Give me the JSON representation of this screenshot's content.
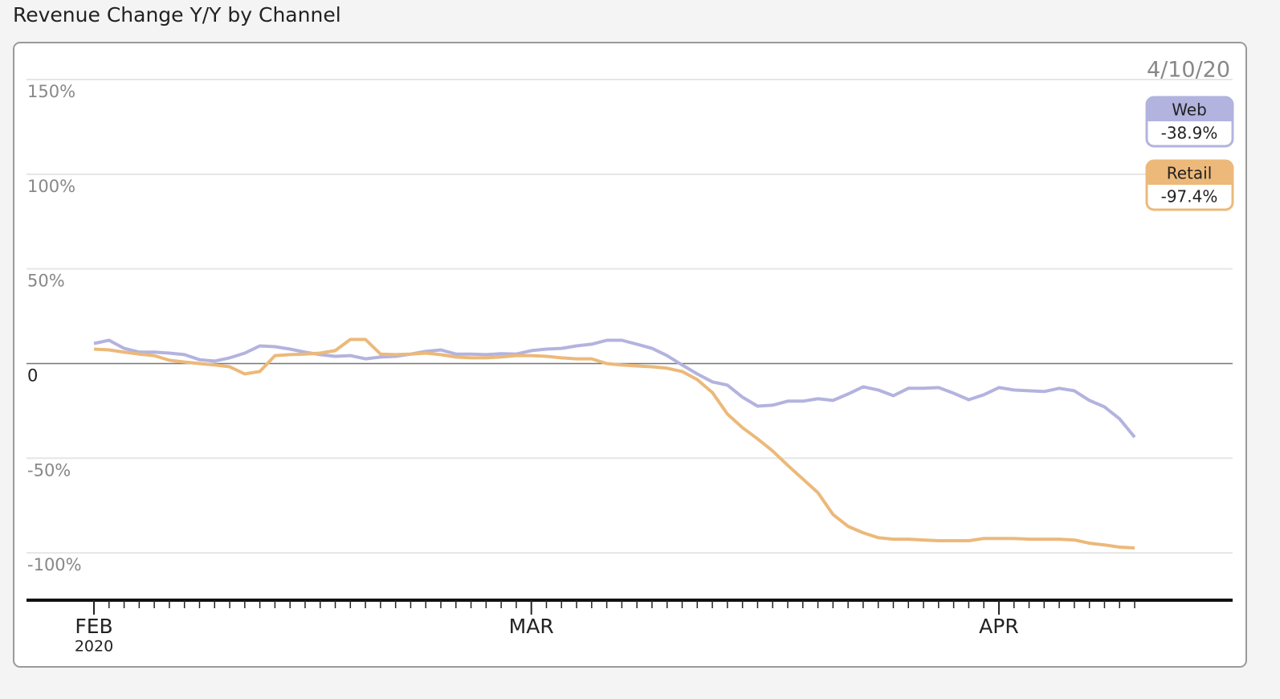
{
  "chart_data": {
    "type": "line",
    "title": "Revenue Change Y/Y by Channel",
    "x": [
      "2020-02-01",
      "2020-02-02",
      "2020-02-03",
      "2020-02-04",
      "2020-02-05",
      "2020-02-06",
      "2020-02-07",
      "2020-02-08",
      "2020-02-09",
      "2020-02-10",
      "2020-02-11",
      "2020-02-12",
      "2020-02-13",
      "2020-02-14",
      "2020-02-15",
      "2020-02-16",
      "2020-02-17",
      "2020-02-18",
      "2020-02-19",
      "2020-02-20",
      "2020-02-21",
      "2020-02-22",
      "2020-02-23",
      "2020-02-24",
      "2020-02-25",
      "2020-02-26",
      "2020-02-27",
      "2020-02-28",
      "2020-02-29",
      "2020-03-01",
      "2020-03-02",
      "2020-03-03",
      "2020-03-04",
      "2020-03-05",
      "2020-03-06",
      "2020-03-07",
      "2020-03-08",
      "2020-03-09",
      "2020-03-10",
      "2020-03-11",
      "2020-03-12",
      "2020-03-13",
      "2020-03-14",
      "2020-03-15",
      "2020-03-16",
      "2020-03-17",
      "2020-03-18",
      "2020-03-19",
      "2020-03-20",
      "2020-03-21",
      "2020-03-22",
      "2020-03-23",
      "2020-03-24",
      "2020-03-25",
      "2020-03-26",
      "2020-03-27",
      "2020-03-28",
      "2020-03-29",
      "2020-03-30",
      "2020-03-31",
      "2020-04-01",
      "2020-04-02",
      "2020-04-03",
      "2020-04-04",
      "2020-04-05",
      "2020-04-06",
      "2020-04-07",
      "2020-04-08",
      "2020-04-09",
      "2020-04-10"
    ],
    "series": [
      {
        "name": "Web",
        "color": "#b3b3df",
        "last_label": "-38.9%",
        "values": [
          10.6,
          12.3,
          8,
          6,
          6,
          5.5,
          4.7,
          2,
          1.3,
          3,
          5.5,
          9.3,
          8.9,
          7.6,
          6,
          4.7,
          3.8,
          4.2,
          2.5,
          3.4,
          3.8,
          5,
          6.4,
          7.2,
          5,
          5,
          4.7,
          5.2,
          5,
          6.8,
          7.6,
          8,
          9.3,
          10.2,
          12.3,
          12.3,
          10.2,
          8,
          4.2,
          -0.8,
          -5.5,
          -9.7,
          -11.4,
          -17.8,
          -22.5,
          -22,
          -19.9,
          -19.9,
          -18.6,
          -19.5,
          -16.1,
          -12.3,
          -14,
          -17,
          -13.1,
          -13.1,
          -12.7,
          -15.7,
          -19.1,
          -16.5,
          -12.7,
          -14,
          -14.4,
          -14.8,
          -13.1,
          -14.4,
          -19.5,
          -22.9,
          -29.2,
          -38.9
        ]
      },
      {
        "name": "Retail",
        "color": "#ecb97a",
        "last_label": "-97.4%",
        "values": [
          7.6,
          7.2,
          6,
          5,
          4.2,
          1.7,
          0.8,
          0,
          -0.8,
          -1.7,
          -5.5,
          -4.2,
          4.2,
          4.7,
          5,
          5.5,
          6.8,
          12.7,
          12.7,
          5,
          4.7,
          5,
          5.5,
          4.7,
          3.4,
          3,
          3,
          3.5,
          4.2,
          4.2,
          3.8,
          3,
          2.5,
          2.5,
          0,
          -0.8,
          -1.3,
          -1.7,
          -2.5,
          -4.2,
          -8.5,
          -15.3,
          -26.7,
          -33.9,
          -39.8,
          -46.2,
          -53.8,
          -61,
          -68.2,
          -79.7,
          -86,
          -89.4,
          -92,
          -92.8,
          -92.8,
          -93.2,
          -93.6,
          -93.6,
          -93.6,
          -92.4,
          -92.4,
          -92.4,
          -92.8,
          -92.8,
          -92.8,
          -93.2,
          -94.9,
          -95.8,
          -97,
          -97.4
        ]
      }
    ],
    "readout_date": "4/10/20",
    "ylim": [
      -125,
      150
    ],
    "yticks": [
      {
        "value": 150,
        "label": "150%"
      },
      {
        "value": 100,
        "label": "100%"
      },
      {
        "value": 50,
        "label": "50%"
      },
      0,
      {
        "value": -50,
        "label": "-50%"
      },
      {
        "value": -100,
        "label": "-100%"
      }
    ],
    "xticks": [
      {
        "value": "2020-02-01",
        "label": "FEB"
      },
      {
        "value": "2020-03-01",
        "label": "MAR"
      },
      {
        "value": "2020-04-01",
        "label": "APR"
      }
    ],
    "year_label": "2020",
    "grid": true
  }
}
